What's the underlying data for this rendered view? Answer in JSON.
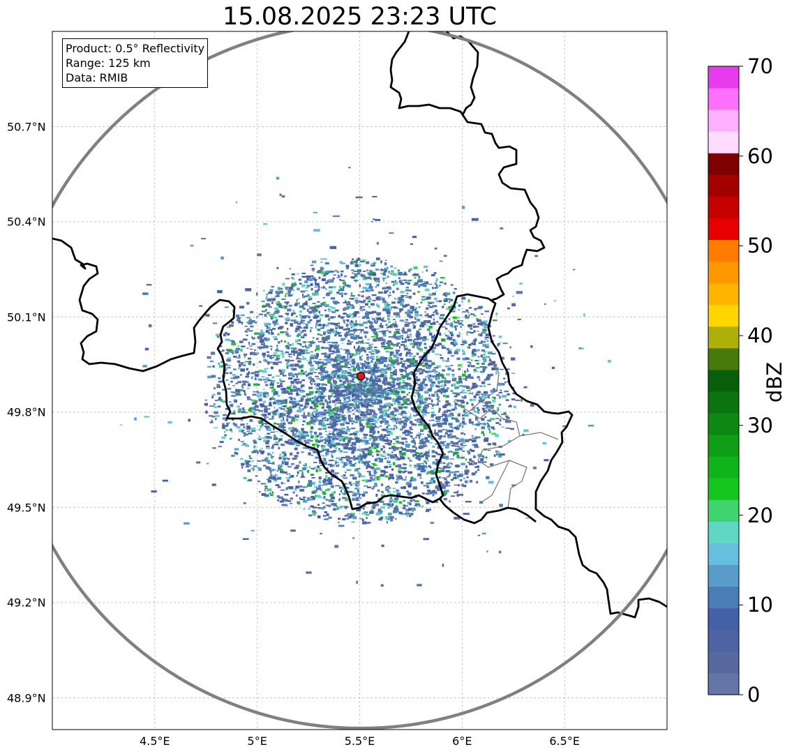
{
  "title": "15.08.2025 23:23 UTC",
  "info": {
    "product": "Product: 0.5° Reflectivity",
    "range": "Range: 125 km",
    "data": "Data: RMIB"
  },
  "map_extent": {
    "lon_min": 4.0,
    "lon_max": 7.0,
    "lat_min": 48.8,
    "lat_max": 51.0
  },
  "radar_site": {
    "lon": 5.506,
    "lat": 49.914,
    "color": "#e8141b"
  },
  "lat_ticks": [
    {
      "value": 50.7,
      "label": "50.7°N"
    },
    {
      "value": 50.4,
      "label": "50.4°N"
    },
    {
      "value": 50.1,
      "label": "50.1°N"
    },
    {
      "value": 49.8,
      "label": "49.8°N"
    },
    {
      "value": 49.5,
      "label": "49.5°N"
    },
    {
      "value": 49.2,
      "label": "49.2°N"
    },
    {
      "value": 48.9,
      "label": "48.9°N"
    }
  ],
  "lon_ticks": [
    {
      "value": 4.5,
      "label": "4.5°E"
    },
    {
      "value": 5.0,
      "label": "5°E"
    },
    {
      "value": 5.5,
      "label": "5.5°E"
    },
    {
      "value": 6.0,
      "label": "6°E"
    },
    {
      "value": 6.5,
      "label": "6.5°E"
    }
  ],
  "colorbar": {
    "label": "dBZ",
    "min": 0,
    "max": 70,
    "ticks": [
      0,
      10,
      20,
      30,
      40,
      50,
      60,
      70
    ],
    "colors": [
      "#6475a8",
      "#5869a0",
      "#4e64a2",
      "#4460a6",
      "#4a7cb5",
      "#5a9cc9",
      "#66bfdc",
      "#60d6c4",
      "#3fd470",
      "#14c61e",
      "#10b41a",
      "#0f9e16",
      "#0d8812",
      "#0a7410",
      "#075f0c",
      "#477a0b",
      "#aeb00a",
      "#ffd600",
      "#ffb400",
      "#ff9800",
      "#ff7c00",
      "#e60000",
      "#c40000",
      "#a40000",
      "#7e0000",
      "#ffdcff",
      "#ffb0ff",
      "#ff70ff",
      "#e83aee"
    ]
  }
}
